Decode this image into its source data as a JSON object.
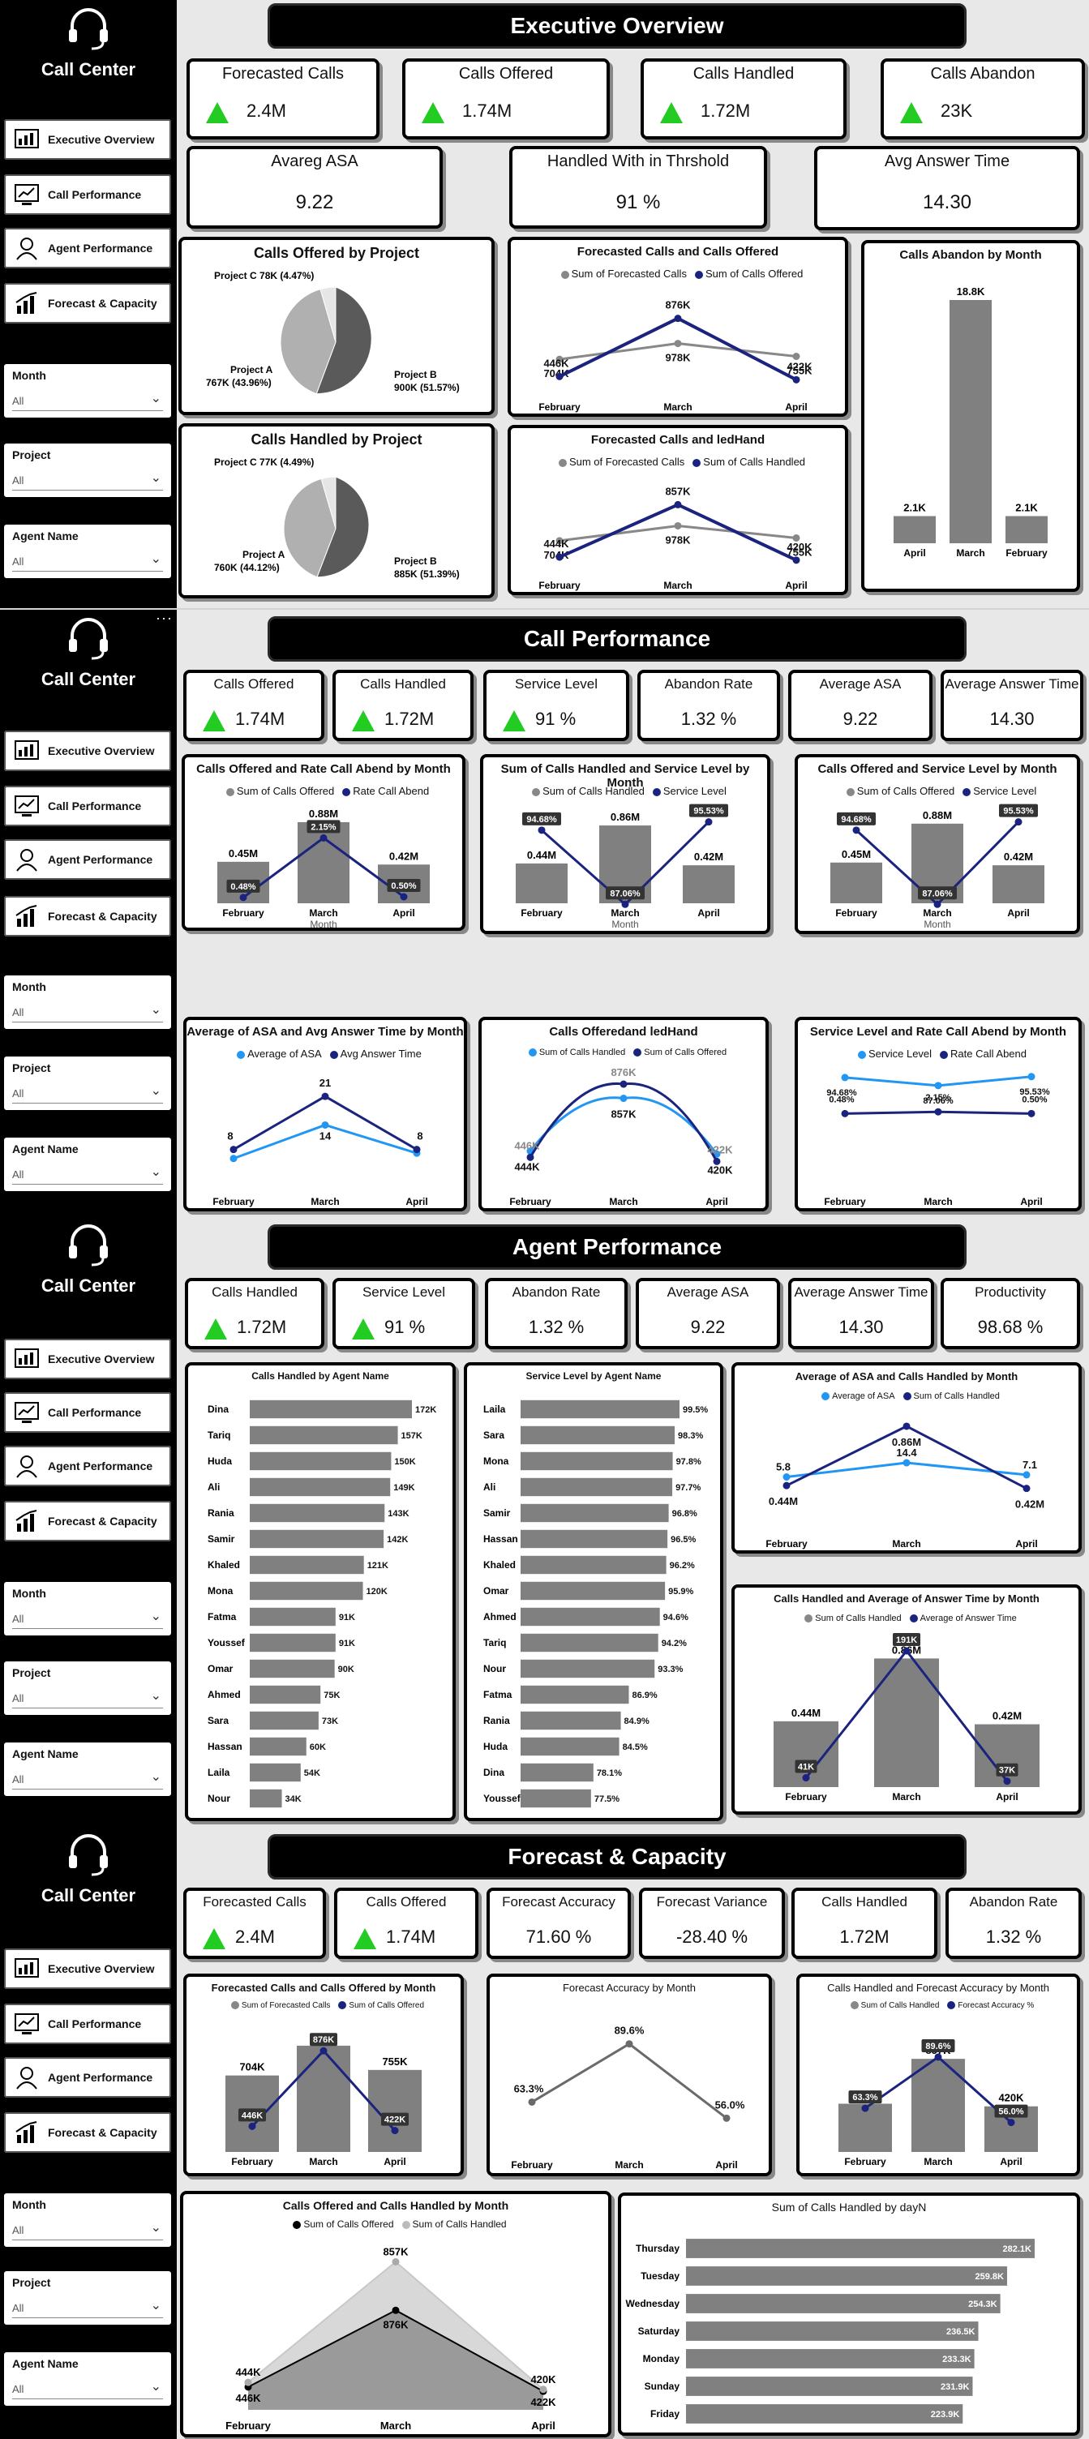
{
  "brand": "Call Center",
  "nav": [
    "Executive Overview",
    "Call Performance",
    "Agent Performance",
    "Forecast & Capacity"
  ],
  "slicers": [
    {
      "title": "Month",
      "value": "All"
    },
    {
      "title": "Project",
      "value": "All"
    },
    {
      "title": "Agent Name",
      "value": "All"
    }
  ],
  "colors": {
    "dark_blue": "#1a237e",
    "light_blue": "#2196f3",
    "bar_gray": "#808080",
    "line_gray": "#888888",
    "kpi_up": "#22cc22"
  },
  "exec": {
    "title": "Executive Overview",
    "kpis": [
      {
        "label": "Forecasted Calls",
        "value": "2.4M"
      },
      {
        "label": "Calls Offered",
        "value": "1.74M"
      },
      {
        "label": "Calls Handled",
        "value": "1.72M"
      },
      {
        "label": "Calls Abandon",
        "value": "23K"
      }
    ],
    "kpis2": [
      {
        "label": "Avareg ASA",
        "value": "9.22"
      },
      {
        "label": "Handled With in Thrshold",
        "value": "91 %"
      },
      {
        "label": "Avg Answer Time",
        "value": "14.30"
      }
    ],
    "pie_offered": {
      "title": "Calls Offered by Project",
      "labels": [
        "Project C 78K (4.47%)",
        "Project A 767K (43.96%)",
        "Project B 900K (51.57%)"
      ]
    },
    "pie_handled": {
      "title": "Calls Handled by Project",
      "labels": [
        "Project C 77K (4.49%)",
        "Project A 760K (44.12%)",
        "Project B 885K (51.39%)"
      ]
    },
    "line1": {
      "title": "Forecasted Calls and Calls Offered",
      "legend": [
        "Sum of Forecasted Calls",
        "Sum of Calls Offered"
      ]
    },
    "line2": {
      "title": "Forecasted Calls and ledHand",
      "legend": [
        "Sum of Forecasted Calls",
        "Sum of Calls Handled"
      ]
    },
    "abandon": {
      "title": "Calls Abandon by Month"
    }
  },
  "perf": {
    "title": "Call Performance",
    "kpis": [
      {
        "label": "Calls Offered",
        "value": "1.74M"
      },
      {
        "label": "Calls Handled",
        "value": "1.72M"
      },
      {
        "label": "Service Level",
        "value": "91 %"
      },
      {
        "label": "Abandon Rate",
        "value": "1.32 %"
      },
      {
        "label": "Average ASA",
        "value": "9.22"
      },
      {
        "label": "Average Answer Time",
        "value": "14.30"
      }
    ],
    "c1": {
      "title": "Calls Offered and Rate Call Abend by Month",
      "legend": [
        "Sum of Calls Offered",
        "Rate Call Abend"
      ],
      "axis": "Month"
    },
    "c2": {
      "title": "Sum of Calls Handled and Service Level by Month",
      "legend": [
        "Sum of Calls Handled",
        "Service Level"
      ],
      "axis": "Month"
    },
    "c3": {
      "title": "Calls Offered and Service Level by Month",
      "legend": [
        "Sum of Calls Offered",
        "Service Level"
      ],
      "axis": "Month"
    },
    "c4": {
      "title": "Average of ASA and Avg Answer Time by Month",
      "legend": [
        "Average of ASA",
        "Avg Answer Time"
      ]
    },
    "c5": {
      "title": "Calls Offeredand ledHand",
      "legend": [
        "Sum of Calls Handled",
        "Sum of Calls Offered"
      ]
    },
    "c6": {
      "title": "Service Level and Rate Call Abend by Month",
      "legend": [
        "Service Level",
        "Rate Call Abend"
      ],
      "axis": "Month"
    }
  },
  "agent": {
    "title": "Agent Performance",
    "kpis": [
      {
        "label": "Calls Handled",
        "value": "1.72M"
      },
      {
        "label": "Service Level",
        "value": "91 %"
      },
      {
        "label": "Abandon Rate",
        "value": "1.32 %"
      },
      {
        "label": "Average ASA",
        "value": "9.22"
      },
      {
        "label": "Average Answer Time",
        "value": "14.30"
      },
      {
        "label": "Productivity",
        "value": "98.68 %"
      }
    ],
    "c1": {
      "title": "Calls Handled by Agent Name"
    },
    "c2": {
      "title": "Service Level by Agent Name"
    },
    "c3": {
      "title": "Average of ASA and Calls Handled by Month",
      "legend": [
        "Average of ASA",
        "Sum of Calls Handled"
      ]
    },
    "c4": {
      "title": "Calls Handled and Average of Answer Time by Month",
      "legend": [
        "Sum of Calls Handled",
        "Average of Answer Time"
      ]
    }
  },
  "forecast": {
    "title": "Forecast & Capacity",
    "kpis": [
      {
        "label": "Forecasted Calls",
        "value": "2.4M"
      },
      {
        "label": "Calls Offered",
        "value": "1.74M"
      },
      {
        "label": "Forecast Accuracy",
        "value": "71.60 %"
      },
      {
        "label": "Forecast Variance",
        "value": "-28.40 %"
      },
      {
        "label": "Calls Handled",
        "value": "1.72M"
      },
      {
        "label": "Abandon Rate",
        "value": "1.32 %"
      }
    ],
    "c1": {
      "title": "Forecasted Calls and Calls Offered by Month",
      "legend": [
        "Sum of Forecasted Calls",
        "Sum of Calls Offered"
      ]
    },
    "c2": {
      "title": "Forecast Accuracy by Month"
    },
    "c3": {
      "title": "Calls Handled and Forecast Accuracy by Month",
      "legend": [
        "Sum of Calls Handled",
        "Forecast Accuracy %"
      ]
    },
    "c4": {
      "title": "Calls Offered and Calls Handled by Month",
      "legend": [
        "Sum of Calls Offered",
        "Sum of Calls Handled"
      ]
    },
    "c5": {
      "title": "Sum of Calls Handled by dayN"
    }
  },
  "chart_data": [
    {
      "id": "exec_line1",
      "type": "line",
      "categories": [
        "February",
        "March",
        "April"
      ],
      "series": [
        {
          "name": "Sum of Forecasted Calls",
          "values": [
            704,
            978,
            755
          ],
          "labels": [
            "704K",
            "978K",
            "755K"
          ]
        },
        {
          "name": "Sum of Calls Offered",
          "values": [
            446,
            876,
            422
          ],
          "labels": [
            "446K",
            "876K",
            "422K"
          ]
        }
      ]
    },
    {
      "id": "exec_line2",
      "type": "line",
      "categories": [
        "February",
        "March",
        "April"
      ],
      "series": [
        {
          "name": "Sum of Forecasted Calls",
          "values": [
            704,
            978,
            755
          ],
          "labels": [
            "704K",
            "978K",
            "755K"
          ]
        },
        {
          "name": "Sum of Calls Handled",
          "values": [
            444,
            857,
            420
          ],
          "labels": [
            "444K",
            "857K",
            "420K"
          ]
        }
      ]
    },
    {
      "id": "exec_abandon",
      "type": "bar",
      "categories": [
        "April",
        "March",
        "February"
      ],
      "values": [
        2.1,
        18.8,
        2.1
      ],
      "labels": [
        "2.1K",
        "18.8K",
        "2.1K"
      ]
    },
    {
      "id": "perf_c1",
      "type": "bar",
      "categories": [
        "February",
        "March",
        "April"
      ],
      "values": [
        0.45,
        0.88,
        0.42
      ],
      "labels": [
        "0.45M",
        "0.88M",
        "0.42M"
      ],
      "line": [
        0.48,
        2.15,
        0.5
      ],
      "line_labels": [
        "0.48%",
        "2.15%",
        "0.50%"
      ]
    },
    {
      "id": "perf_c2",
      "type": "bar",
      "categories": [
        "February",
        "March",
        "April"
      ],
      "values": [
        0.44,
        0.86,
        0.42
      ],
      "labels": [
        "0.44M",
        "0.86M",
        "0.42M"
      ],
      "line": [
        94.68,
        87.06,
        95.53
      ],
      "line_labels": [
        "94.68%",
        "87.06%",
        "95.53%"
      ]
    },
    {
      "id": "perf_c3",
      "type": "bar",
      "categories": [
        "February",
        "March",
        "April"
      ],
      "values": [
        0.45,
        0.88,
        0.42
      ],
      "labels": [
        "0.45M",
        "0.88M",
        "0.42M"
      ],
      "line": [
        94.68,
        87.06,
        95.53
      ],
      "line_labels": [
        "94.68%",
        "87.06%",
        "95.53%"
      ]
    },
    {
      "id": "perf_c4",
      "type": "line",
      "categories": [
        "February",
        "March",
        "April"
      ],
      "series": [
        {
          "name": "Average of ASA",
          "values": [
            5.8,
            14,
            7.1
          ],
          "labels": [
            "",
            "14",
            ""
          ]
        },
        {
          "name": "Avg Answer Time",
          "values": [
            8,
            21,
            8
          ],
          "labels": [
            "8",
            "21",
            "8"
          ]
        }
      ]
    },
    {
      "id": "perf_c5",
      "type": "line",
      "categories": [
        "February",
        "March",
        "April"
      ],
      "series": [
        {
          "name": "Sum of Calls Handled",
          "values": [
            444,
            857,
            420
          ],
          "labels": [
            "444K",
            "857K",
            "420K"
          ]
        },
        {
          "name": "Sum of Calls Offered",
          "values": [
            446,
            876,
            422
          ],
          "labels": [
            "446K",
            "876K",
            "422K"
          ]
        }
      ]
    },
    {
      "id": "perf_c6",
      "type": "line",
      "categories": [
        "February",
        "March",
        "April"
      ],
      "series": [
        {
          "name": "Service Level",
          "values": [
            94.68,
            87.06,
            95.53
          ],
          "labels": [
            "94.68%",
            "87.06%",
            "95.53%"
          ]
        },
        {
          "name": "Rate Call Abend",
          "values": [
            0.48,
            2.15,
            0.5
          ],
          "labels": [
            "0.48%",
            "2.15%",
            "0.50%"
          ]
        }
      ]
    },
    {
      "id": "agent_c1",
      "type": "bar",
      "categories": [
        "Dina",
        "Tariq",
        "Huda",
        "Ali",
        "Rania",
        "Samir",
        "Khaled",
        "Mona",
        "Fatma",
        "Youssef",
        "Omar",
        "Ahmed",
        "Sara",
        "Hassan",
        "Laila",
        "Nour"
      ],
      "values": [
        172,
        157,
        150,
        149,
        143,
        142,
        121,
        120,
        91,
        91,
        90,
        75,
        73,
        60,
        54,
        34
      ],
      "labels": [
        "172K",
        "157K",
        "150K",
        "149K",
        "143K",
        "142K",
        "121K",
        "120K",
        "91K",
        "91K",
        "90K",
        "75K",
        "73K",
        "60K",
        "54K",
        "34K"
      ]
    },
    {
      "id": "agent_c2",
      "type": "bar",
      "categories": [
        "Laila",
        "Sara",
        "Mona",
        "Ali",
        "Samir",
        "Hassan",
        "Khaled",
        "Omar",
        "Ahmed",
        "Tariq",
        "Nour",
        "Fatma",
        "Rania",
        "Huda",
        "Dina",
        "Youssef"
      ],
      "values": [
        99.5,
        98.3,
        97.8,
        97.7,
        96.8,
        96.5,
        96.2,
        95.9,
        94.6,
        94.2,
        93.3,
        86.9,
        84.9,
        84.5,
        78.1,
        77.5
      ],
      "labels": [
        "99.5%",
        "98.3%",
        "97.8%",
        "97.7%",
        "96.8%",
        "96.5%",
        "96.2%",
        "95.9%",
        "94.6%",
        "94.2%",
        "93.3%",
        "86.9%",
        "84.9%",
        "84.5%",
        "78.1%",
        "77.5%"
      ]
    },
    {
      "id": "agent_c3",
      "type": "line",
      "categories": [
        "February",
        "March",
        "April"
      ],
      "series": [
        {
          "name": "Average of ASA",
          "values": [
            5.8,
            14.4,
            7.1
          ],
          "labels": [
            "5.8",
            "14.4",
            "7.1"
          ]
        },
        {
          "name": "Sum of Calls Handled",
          "values": [
            0.44,
            0.86,
            0.42
          ],
          "labels": [
            "0.44M",
            "0.86M",
            "0.42M"
          ]
        }
      ]
    },
    {
      "id": "agent_c4",
      "type": "bar",
      "categories": [
        "February",
        "March",
        "April"
      ],
      "values": [
        0.44,
        0.86,
        0.42
      ],
      "labels": [
        "0.44M",
        "0.86M",
        "0.42M"
      ],
      "line": [
        41,
        191,
        37
      ],
      "line_labels": [
        "41K",
        "191K",
        "37K"
      ]
    },
    {
      "id": "fc_c1",
      "type": "bar",
      "categories": [
        "February",
        "March",
        "April"
      ],
      "values": [
        704,
        978,
        755
      ],
      "labels": [
        "704K",
        "978K",
        "755K"
      ],
      "line": [
        446,
        876,
        422
      ],
      "line_labels": [
        "446K",
        "876K",
        "422K"
      ]
    },
    {
      "id": "fc_c2",
      "type": "line",
      "categories": [
        "February",
        "March",
        "April"
      ],
      "series": [
        {
          "name": "Forecast Accuracy",
          "values": [
            63.3,
            89.6,
            56.0
          ],
          "labels": [
            "63.3%",
            "89.6%",
            "56.0%"
          ]
        }
      ]
    },
    {
      "id": "fc_c3",
      "type": "bar",
      "categories": [
        "February",
        "March",
        "April"
      ],
      "values": [
        444,
        857,
        420
      ],
      "labels": [
        "444K",
        "857K",
        "420K"
      ],
      "line": [
        63.3,
        89.6,
        56.0
      ],
      "line_labels": [
        "63.3%",
        "89.6%",
        "56.0%"
      ]
    },
    {
      "id": "fc_c4",
      "type": "area",
      "categories": [
        "February",
        "March",
        "April"
      ],
      "series": [
        {
          "name": "Sum of Calls Offered",
          "values": [
            446,
            876,
            422
          ],
          "labels": [
            "446K",
            "876K",
            "422K"
          ]
        },
        {
          "name": "Sum of Calls Handled",
          "values": [
            444,
            857,
            420
          ],
          "labels": [
            "444K",
            "857K",
            "420K"
          ]
        }
      ]
    },
    {
      "id": "fc_c5",
      "type": "bar",
      "categories": [
        "Thursday",
        "Tuesday",
        "Wednesday",
        "Saturday",
        "Monday",
        "Sunday",
        "Friday"
      ],
      "values": [
        282.1,
        259.8,
        254.3,
        236.5,
        233.3,
        231.9,
        223.9
      ],
      "labels": [
        "282.1K",
        "259.8K",
        "254.3K",
        "236.5K",
        "233.3K",
        "231.9K",
        "223.9K"
      ]
    }
  ]
}
